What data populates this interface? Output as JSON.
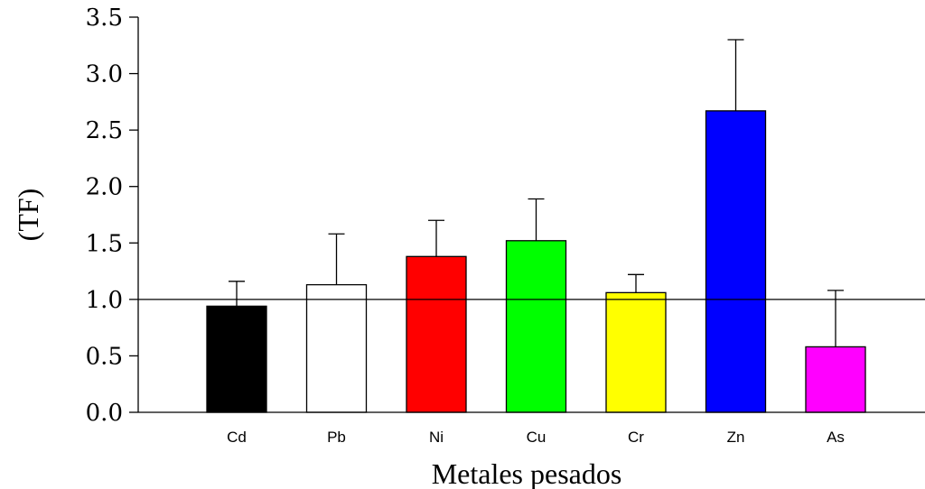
{
  "chart_data": {
    "type": "bar",
    "title": "",
    "xlabel": "Metales pesados",
    "ylabel": "(TF)",
    "categories": [
      "Cd",
      "Pb",
      "Ni",
      "Cu",
      "Cr",
      "Zn",
      "As"
    ],
    "values": [
      0.94,
      1.13,
      1.38,
      1.52,
      1.06,
      2.67,
      0.58
    ],
    "error_upper": [
      1.16,
      1.58,
      1.7,
      1.89,
      1.22,
      3.3,
      1.08
    ],
    "colors": [
      "#000000",
      "#ffffff",
      "#ff0000",
      "#00ff00",
      "#ffff00",
      "#0000ff",
      "#ff00ff"
    ],
    "ylim": [
      0,
      3.5
    ],
    "yticks": [
      "0.0",
      "0.5",
      "1.0",
      "1.5",
      "2.0",
      "2.5",
      "3.0",
      "3.5"
    ],
    "reference_line": 1.0,
    "grid": false,
    "legend": "none"
  }
}
